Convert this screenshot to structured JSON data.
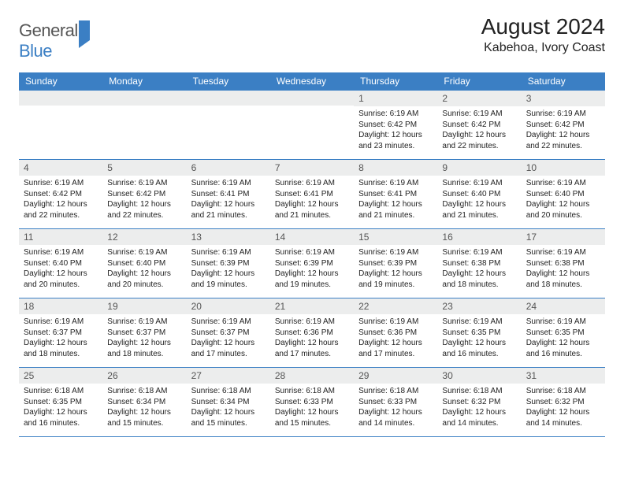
{
  "logo": {
    "general": "General",
    "blue": "Blue"
  },
  "title": "August 2024",
  "location": "Kabehoa, Ivory Coast",
  "colors": {
    "header_bg": "#3b7fc4",
    "header_text": "#ffffff",
    "daynum_bg": "#eceded",
    "border": "#3b7fc4",
    "text": "#222222",
    "logo_gray": "#555555",
    "logo_blue": "#3b7fc4"
  },
  "weekdays": [
    "Sunday",
    "Monday",
    "Tuesday",
    "Wednesday",
    "Thursday",
    "Friday",
    "Saturday"
  ],
  "weeks": [
    [
      null,
      null,
      null,
      null,
      {
        "d": "1",
        "sr": "6:19 AM",
        "ss": "6:42 PM",
        "dl": "12 hours and 23 minutes."
      },
      {
        "d": "2",
        "sr": "6:19 AM",
        "ss": "6:42 PM",
        "dl": "12 hours and 22 minutes."
      },
      {
        "d": "3",
        "sr": "6:19 AM",
        "ss": "6:42 PM",
        "dl": "12 hours and 22 minutes."
      }
    ],
    [
      {
        "d": "4",
        "sr": "6:19 AM",
        "ss": "6:42 PM",
        "dl": "12 hours and 22 minutes."
      },
      {
        "d": "5",
        "sr": "6:19 AM",
        "ss": "6:42 PM",
        "dl": "12 hours and 22 minutes."
      },
      {
        "d": "6",
        "sr": "6:19 AM",
        "ss": "6:41 PM",
        "dl": "12 hours and 21 minutes."
      },
      {
        "d": "7",
        "sr": "6:19 AM",
        "ss": "6:41 PM",
        "dl": "12 hours and 21 minutes."
      },
      {
        "d": "8",
        "sr": "6:19 AM",
        "ss": "6:41 PM",
        "dl": "12 hours and 21 minutes."
      },
      {
        "d": "9",
        "sr": "6:19 AM",
        "ss": "6:40 PM",
        "dl": "12 hours and 21 minutes."
      },
      {
        "d": "10",
        "sr": "6:19 AM",
        "ss": "6:40 PM",
        "dl": "12 hours and 20 minutes."
      }
    ],
    [
      {
        "d": "11",
        "sr": "6:19 AM",
        "ss": "6:40 PM",
        "dl": "12 hours and 20 minutes."
      },
      {
        "d": "12",
        "sr": "6:19 AM",
        "ss": "6:40 PM",
        "dl": "12 hours and 20 minutes."
      },
      {
        "d": "13",
        "sr": "6:19 AM",
        "ss": "6:39 PM",
        "dl": "12 hours and 19 minutes."
      },
      {
        "d": "14",
        "sr": "6:19 AM",
        "ss": "6:39 PM",
        "dl": "12 hours and 19 minutes."
      },
      {
        "d": "15",
        "sr": "6:19 AM",
        "ss": "6:39 PM",
        "dl": "12 hours and 19 minutes."
      },
      {
        "d": "16",
        "sr": "6:19 AM",
        "ss": "6:38 PM",
        "dl": "12 hours and 18 minutes."
      },
      {
        "d": "17",
        "sr": "6:19 AM",
        "ss": "6:38 PM",
        "dl": "12 hours and 18 minutes."
      }
    ],
    [
      {
        "d": "18",
        "sr": "6:19 AM",
        "ss": "6:37 PM",
        "dl": "12 hours and 18 minutes."
      },
      {
        "d": "19",
        "sr": "6:19 AM",
        "ss": "6:37 PM",
        "dl": "12 hours and 18 minutes."
      },
      {
        "d": "20",
        "sr": "6:19 AM",
        "ss": "6:37 PM",
        "dl": "12 hours and 17 minutes."
      },
      {
        "d": "21",
        "sr": "6:19 AM",
        "ss": "6:36 PM",
        "dl": "12 hours and 17 minutes."
      },
      {
        "d": "22",
        "sr": "6:19 AM",
        "ss": "6:36 PM",
        "dl": "12 hours and 17 minutes."
      },
      {
        "d": "23",
        "sr": "6:19 AM",
        "ss": "6:35 PM",
        "dl": "12 hours and 16 minutes."
      },
      {
        "d": "24",
        "sr": "6:19 AM",
        "ss": "6:35 PM",
        "dl": "12 hours and 16 minutes."
      }
    ],
    [
      {
        "d": "25",
        "sr": "6:18 AM",
        "ss": "6:35 PM",
        "dl": "12 hours and 16 minutes."
      },
      {
        "d": "26",
        "sr": "6:18 AM",
        "ss": "6:34 PM",
        "dl": "12 hours and 15 minutes."
      },
      {
        "d": "27",
        "sr": "6:18 AM",
        "ss": "6:34 PM",
        "dl": "12 hours and 15 minutes."
      },
      {
        "d": "28",
        "sr": "6:18 AM",
        "ss": "6:33 PM",
        "dl": "12 hours and 15 minutes."
      },
      {
        "d": "29",
        "sr": "6:18 AM",
        "ss": "6:33 PM",
        "dl": "12 hours and 14 minutes."
      },
      {
        "d": "30",
        "sr": "6:18 AM",
        "ss": "6:32 PM",
        "dl": "12 hours and 14 minutes."
      },
      {
        "d": "31",
        "sr": "6:18 AM",
        "ss": "6:32 PM",
        "dl": "12 hours and 14 minutes."
      }
    ]
  ],
  "labels": {
    "sunrise": "Sunrise:",
    "sunset": "Sunset:",
    "daylight": "Daylight:"
  }
}
